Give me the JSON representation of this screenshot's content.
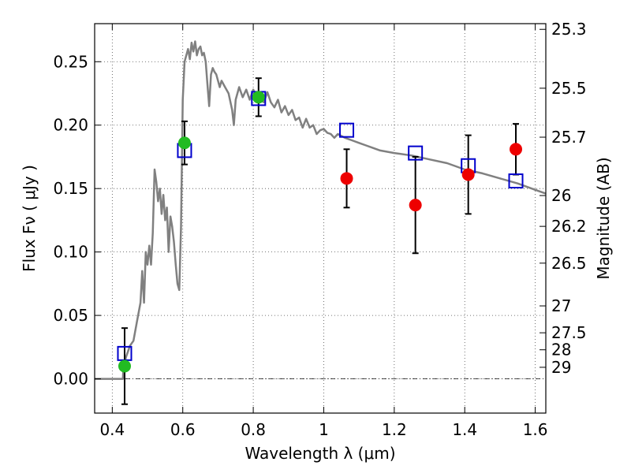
{
  "chart_data": {
    "type": "scatter",
    "xlabel": "Wavelength  λ (μm)",
    "ylabel": "Flux  Fν ( μJy )",
    "ylabel_right": "Magnitude (AB)",
    "xlim": [
      0.35,
      1.63
    ],
    "ylim": [
      -0.027,
      0.28
    ],
    "grid": true,
    "x_ticks": [
      0.4,
      0.6,
      0.8,
      1.0,
      1.2,
      1.4,
      1.6
    ],
    "x_tick_labels": [
      "0.4",
      "0.6",
      "0.8",
      "1",
      "1.2",
      "1.4",
      "1.6"
    ],
    "y_ticks": [
      0.0,
      0.05,
      0.1,
      0.15,
      0.2,
      0.25
    ],
    "y_tick_labels": [
      "0.00",
      "0.05",
      "0.10",
      "0.15",
      "0.20",
      "0.25"
    ],
    "right_ticks": [
      {
        "label": "25.3",
        "flux": 0.2755
      },
      {
        "label": "25.5",
        "flux": 0.2291
      },
      {
        "label": "25.7",
        "flux": 0.1905
      },
      {
        "label": "26",
        "flux": 0.1445
      },
      {
        "label": "26.2",
        "flux": 0.1202
      },
      {
        "label": "26.5",
        "flux": 0.0912
      },
      {
        "label": "27",
        "flux": 0.0575
      },
      {
        "label": "27.5",
        "flux": 0.0363
      },
      {
        "label": "28",
        "flux": 0.0229
      },
      {
        "label": "29",
        "flux": 0.0091
      }
    ],
    "series": [
      {
        "kind": "line",
        "color": "#808080",
        "x": [
          0.35,
          0.43,
          0.432,
          0.44,
          0.445,
          0.45,
          0.46,
          0.47,
          0.48,
          0.485,
          0.49,
          0.495,
          0.5,
          0.505,
          0.51,
          0.515,
          0.52,
          0.525,
          0.53,
          0.535,
          0.54,
          0.545,
          0.55,
          0.555,
          0.56,
          0.565,
          0.57,
          0.575,
          0.58,
          0.585,
          0.59,
          0.595,
          0.6,
          0.605,
          0.61,
          0.615,
          0.62,
          0.625,
          0.63,
          0.635,
          0.64,
          0.645,
          0.65,
          0.655,
          0.66,
          0.665,
          0.67,
          0.675,
          0.68,
          0.685,
          0.69,
          0.695,
          0.7,
          0.705,
          0.71,
          0.72,
          0.73,
          0.74,
          0.745,
          0.75,
          0.755,
          0.76,
          0.77,
          0.78,
          0.79,
          0.8,
          0.81,
          0.82,
          0.83,
          0.84,
          0.85,
          0.86,
          0.87,
          0.88,
          0.89,
          0.9,
          0.91,
          0.92,
          0.93,
          0.94,
          0.95,
          0.96,
          0.97,
          0.98,
          0.99,
          1.0,
          1.01,
          1.02,
          1.03,
          1.04,
          1.06,
          1.08,
          1.1,
          1.12,
          1.14,
          1.16,
          1.2,
          1.25,
          1.3,
          1.35,
          1.4,
          1.45,
          1.5,
          1.55,
          1.6,
          1.63
        ],
        "y": [
          0.0,
          0.0,
          0.01,
          0.018,
          0.022,
          0.026,
          0.03,
          0.045,
          0.06,
          0.085,
          0.06,
          0.1,
          0.09,
          0.105,
          0.09,
          0.115,
          0.165,
          0.155,
          0.14,
          0.15,
          0.13,
          0.145,
          0.125,
          0.135,
          0.1,
          0.128,
          0.12,
          0.108,
          0.09,
          0.075,
          0.07,
          0.12,
          0.22,
          0.25,
          0.255,
          0.26,
          0.252,
          0.265,
          0.258,
          0.266,
          0.255,
          0.26,
          0.262,
          0.255,
          0.257,
          0.25,
          0.232,
          0.215,
          0.24,
          0.245,
          0.242,
          0.24,
          0.235,
          0.23,
          0.235,
          0.23,
          0.225,
          0.212,
          0.2,
          0.22,
          0.225,
          0.23,
          0.222,
          0.228,
          0.22,
          0.228,
          0.222,
          0.22,
          0.218,
          0.226,
          0.218,
          0.214,
          0.22,
          0.21,
          0.215,
          0.208,
          0.212,
          0.204,
          0.206,
          0.198,
          0.205,
          0.198,
          0.2,
          0.193,
          0.196,
          0.197,
          0.194,
          0.193,
          0.19,
          0.193,
          0.19,
          0.188,
          0.186,
          0.184,
          0.182,
          0.18,
          0.178,
          0.176,
          0.173,
          0.17,
          0.165,
          0.162,
          0.158,
          0.154,
          0.149,
          0.146
        ]
      },
      {
        "kind": "model-boxes",
        "marker": "open-square",
        "color": "#0000cc",
        "x": [
          0.435,
          0.605,
          0.815,
          1.065,
          1.26,
          1.41,
          1.545
        ],
        "y": [
          0.02,
          0.18,
          0.221,
          0.196,
          0.178,
          0.168,
          0.156
        ]
      },
      {
        "kind": "points",
        "marker": "filled-circle",
        "color": "#22bb22",
        "x": [
          0.435,
          0.605,
          0.815
        ],
        "y": [
          0.01,
          0.186,
          0.222
        ],
        "yerr": [
          0.03,
          0.017,
          0.015
        ]
      },
      {
        "kind": "points",
        "marker": "filled-circle",
        "color": "#ee0000",
        "x": [
          1.065,
          1.26,
          1.41,
          1.545
        ],
        "y": [
          0.158,
          0.137,
          0.161,
          0.181
        ],
        "yerr": [
          0.023,
          0.038,
          0.031,
          0.02
        ]
      }
    ]
  }
}
